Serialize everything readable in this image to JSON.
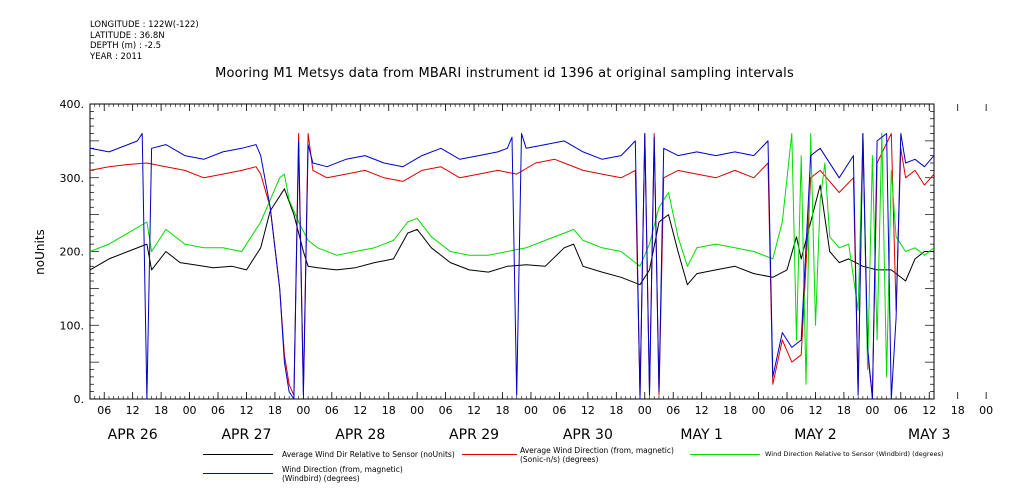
{
  "metadata": {
    "longitude": "LONGITUDE : 122W(-122)",
    "latitude": "LATITUDE : 36.8N",
    "depth": "DEPTH (m) : -2.5",
    "year": "YEAR : 2011"
  },
  "chart_data": {
    "type": "line",
    "title": "Mooring M1 Metsys data from MBARI instrument id 1396 at original sampling intervals",
    "ylabel": "noUnits",
    "ylim": [
      0,
      400
    ],
    "yticks": [
      0,
      100,
      200,
      300,
      400
    ],
    "ytick_labels": [
      "0.",
      "100.",
      "200.",
      "300.",
      "400."
    ],
    "xlim_hours": [
      0,
      178
    ],
    "x_start": "2011-04-26 03:00",
    "hour_ticks": [
      "06",
      "12",
      "18",
      "00",
      "06",
      "12",
      "18",
      "00",
      "06",
      "12",
      "18",
      "00",
      "06",
      "12",
      "18",
      "00",
      "06",
      "12",
      "18",
      "00",
      "06",
      "12",
      "18",
      "00",
      "06",
      "12",
      "18",
      "00",
      "06",
      "12",
      "18",
      "00"
    ],
    "day_labels": [
      "APR 26",
      "APR 27",
      "APR 28",
      "APR 29",
      "APR 30",
      "MAY  1",
      "MAY  2",
      "MAY  3"
    ],
    "grid": false,
    "series": [
      {
        "name": "Average Wind Dir Relative to Sensor (noUnits)",
        "color": "#000000",
        "points": [
          [
            0,
            175
          ],
          [
            4,
            190
          ],
          [
            8,
            200
          ],
          [
            12,
            210
          ],
          [
            13,
            175
          ],
          [
            16,
            200
          ],
          [
            19,
            185
          ],
          [
            22,
            182
          ],
          [
            26,
            178
          ],
          [
            30,
            180
          ],
          [
            33,
            175
          ],
          [
            36,
            205
          ],
          [
            38,
            255
          ],
          [
            40,
            275
          ],
          [
            41,
            285
          ],
          [
            43,
            250
          ],
          [
            45,
            200
          ],
          [
            46,
            180
          ],
          [
            48,
            178
          ],
          [
            52,
            175
          ],
          [
            56,
            178
          ],
          [
            60,
            185
          ],
          [
            64,
            190
          ],
          [
            67,
            225
          ],
          [
            69,
            230
          ],
          [
            72,
            205
          ],
          [
            76,
            185
          ],
          [
            80,
            175
          ],
          [
            84,
            172
          ],
          [
            88,
            180
          ],
          [
            92,
            182
          ],
          [
            96,
            180
          ],
          [
            100,
            205
          ],
          [
            102,
            210
          ],
          [
            104,
            180
          ],
          [
            108,
            172
          ],
          [
            112,
            165
          ],
          [
            116,
            155
          ],
          [
            118,
            175
          ],
          [
            120,
            240
          ],
          [
            122,
            250
          ],
          [
            124,
            200
          ],
          [
            126,
            155
          ],
          [
            128,
            170
          ],
          [
            132,
            175
          ],
          [
            136,
            180
          ],
          [
            140,
            170
          ],
          [
            144,
            165
          ],
          [
            147,
            175
          ],
          [
            149,
            220
          ],
          [
            150,
            190
          ],
          [
            152,
            240
          ],
          [
            154,
            290
          ],
          [
            156,
            200
          ],
          [
            158,
            185
          ],
          [
            160,
            190
          ],
          [
            163,
            180
          ],
          [
            166,
            175
          ],
          [
            169,
            175
          ],
          [
            172,
            160
          ],
          [
            174,
            190
          ],
          [
            176,
            200
          ],
          [
            178,
            200
          ]
        ]
      },
      {
        "name": "Average Wind Direction (from, magnetic) (Sonic-n/s) (degrees)",
        "color": "#dd0000",
        "points": [
          [
            0,
            310
          ],
          [
            4,
            315
          ],
          [
            8,
            318
          ],
          [
            12,
            320
          ],
          [
            16,
            315
          ],
          [
            20,
            310
          ],
          [
            24,
            300
          ],
          [
            28,
            305
          ],
          [
            32,
            310
          ],
          [
            35,
            315
          ],
          [
            36,
            305
          ],
          [
            38,
            260
          ],
          [
            40,
            150
          ],
          [
            41,
            60
          ],
          [
            42,
            20
          ],
          [
            43,
            5
          ],
          [
            44,
            360
          ],
          [
            45,
            10
          ],
          [
            46,
            360
          ],
          [
            47,
            310
          ],
          [
            50,
            300
          ],
          [
            54,
            305
          ],
          [
            58,
            310
          ],
          [
            62,
            300
          ],
          [
            66,
            295
          ],
          [
            70,
            310
          ],
          [
            74,
            315
          ],
          [
            78,
            300
          ],
          [
            82,
            305
          ],
          [
            86,
            310
          ],
          [
            90,
            305
          ],
          [
            94,
            320
          ],
          [
            98,
            325
          ],
          [
            100,
            320
          ],
          [
            104,
            310
          ],
          [
            108,
            305
          ],
          [
            112,
            300
          ],
          [
            115,
            310
          ],
          [
            116,
            5
          ],
          [
            117,
            360
          ],
          [
            118,
            10
          ],
          [
            119,
            360
          ],
          [
            120,
            5
          ],
          [
            121,
            300
          ],
          [
            124,
            310
          ],
          [
            128,
            305
          ],
          [
            132,
            300
          ],
          [
            136,
            310
          ],
          [
            140,
            300
          ],
          [
            143,
            320
          ],
          [
            144,
            20
          ],
          [
            146,
            80
          ],
          [
            148,
            50
          ],
          [
            150,
            60
          ],
          [
            152,
            300
          ],
          [
            154,
            310
          ],
          [
            158,
            280
          ],
          [
            161,
            300
          ],
          [
            162,
            10
          ],
          [
            163,
            360
          ],
          [
            164,
            60
          ],
          [
            165,
            5
          ],
          [
            166,
            320
          ],
          [
            169,
            360
          ],
          [
            170,
            120
          ],
          [
            171,
            340
          ],
          [
            172,
            300
          ],
          [
            174,
            310
          ],
          [
            176,
            290
          ],
          [
            178,
            305
          ]
        ]
      },
      {
        "name": "Wind Direction Relative to Sensor (Windbird) (degrees)",
        "color": "#00dd00",
        "points": [
          [
            0,
            200
          ],
          [
            4,
            210
          ],
          [
            8,
            225
          ],
          [
            12,
            240
          ],
          [
            13,
            200
          ],
          [
            16,
            230
          ],
          [
            20,
            210
          ],
          [
            24,
            205
          ],
          [
            28,
            205
          ],
          [
            32,
            200
          ],
          [
            36,
            240
          ],
          [
            38,
            270
          ],
          [
            40,
            300
          ],
          [
            41,
            305
          ],
          [
            42,
            270
          ],
          [
            44,
            240
          ],
          [
            46,
            215
          ],
          [
            48,
            205
          ],
          [
            52,
            195
          ],
          [
            56,
            200
          ],
          [
            60,
            205
          ],
          [
            64,
            215
          ],
          [
            67,
            240
          ],
          [
            69,
            245
          ],
          [
            72,
            220
          ],
          [
            76,
            200
          ],
          [
            80,
            195
          ],
          [
            84,
            195
          ],
          [
            88,
            200
          ],
          [
            92,
            205
          ],
          [
            96,
            215
          ],
          [
            100,
            225
          ],
          [
            102,
            230
          ],
          [
            104,
            215
          ],
          [
            108,
            205
          ],
          [
            112,
            200
          ],
          [
            116,
            180
          ],
          [
            118,
            210
          ],
          [
            120,
            260
          ],
          [
            122,
            280
          ],
          [
            124,
            220
          ],
          [
            126,
            180
          ],
          [
            128,
            205
          ],
          [
            132,
            210
          ],
          [
            136,
            205
          ],
          [
            140,
            200
          ],
          [
            144,
            190
          ],
          [
            146,
            240
          ],
          [
            148,
            360
          ],
          [
            149,
            80
          ],
          [
            150,
            330
          ],
          [
            151,
            20
          ],
          [
            152,
            360
          ],
          [
            153,
            100
          ],
          [
            154,
            270
          ],
          [
            155,
            320
          ],
          [
            156,
            220
          ],
          [
            158,
            205
          ],
          [
            160,
            210
          ],
          [
            162,
            120
          ],
          [
            163,
            360
          ],
          [
            164,
            40
          ],
          [
            165,
            330
          ],
          [
            166,
            80
          ],
          [
            167,
            360
          ],
          [
            168,
            30
          ],
          [
            169,
            310
          ],
          [
            170,
            220
          ],
          [
            172,
            200
          ],
          [
            174,
            205
          ],
          [
            176,
            195
          ],
          [
            178,
            205
          ]
        ]
      },
      {
        "name": "Wind Direction (from, magnetic) (Windbird) (degrees)",
        "color": "#0000cc",
        "points": [
          [
            0,
            340
          ],
          [
            4,
            335
          ],
          [
            8,
            345
          ],
          [
            10,
            350
          ],
          [
            11,
            360
          ],
          [
            12,
            0
          ],
          [
            13,
            340
          ],
          [
            16,
            345
          ],
          [
            20,
            330
          ],
          [
            24,
            325
          ],
          [
            28,
            335
          ],
          [
            32,
            340
          ],
          [
            35,
            345
          ],
          [
            36,
            330
          ],
          [
            38,
            260
          ],
          [
            40,
            150
          ],
          [
            41,
            50
          ],
          [
            42,
            10
          ],
          [
            43,
            0
          ],
          [
            44,
            350
          ],
          [
            45,
            5
          ],
          [
            46,
            345
          ],
          [
            47,
            320
          ],
          [
            50,
            315
          ],
          [
            54,
            325
          ],
          [
            58,
            330
          ],
          [
            62,
            320
          ],
          [
            66,
            315
          ],
          [
            70,
            330
          ],
          [
            74,
            340
          ],
          [
            78,
            325
          ],
          [
            82,
            330
          ],
          [
            86,
            335
          ],
          [
            88,
            340
          ],
          [
            89,
            355
          ],
          [
            90,
            5
          ],
          [
            91,
            360
          ],
          [
            92,
            340
          ],
          [
            96,
            345
          ],
          [
            100,
            350
          ],
          [
            104,
            335
          ],
          [
            108,
            325
          ],
          [
            112,
            330
          ],
          [
            115,
            350
          ],
          [
            116,
            0
          ],
          [
            117,
            360
          ],
          [
            118,
            5
          ],
          [
            119,
            355
          ],
          [
            120,
            10
          ],
          [
            121,
            340
          ],
          [
            124,
            330
          ],
          [
            128,
            335
          ],
          [
            132,
            330
          ],
          [
            136,
            335
          ],
          [
            140,
            330
          ],
          [
            143,
            350
          ],
          [
            144,
            30
          ],
          [
            146,
            90
          ],
          [
            148,
            70
          ],
          [
            150,
            80
          ],
          [
            152,
            330
          ],
          [
            154,
            340
          ],
          [
            158,
            300
          ],
          [
            161,
            330
          ],
          [
            162,
            5
          ],
          [
            163,
            360
          ],
          [
            164,
            70
          ],
          [
            165,
            0
          ],
          [
            166,
            350
          ],
          [
            168,
            360
          ],
          [
            169,
            0
          ],
          [
            170,
            110
          ],
          [
            171,
            360
          ],
          [
            172,
            320
          ],
          [
            174,
            325
          ],
          [
            176,
            315
          ],
          [
            178,
            330
          ]
        ]
      }
    ],
    "legend": {
      "placement": "bottom",
      "entries": [
        "Average Wind Dir Relative to Sensor (noUnits)",
        "Average Wind Direction (from, magnetic) (Sonic-n/s) (degrees)",
        "Wind Direction Relative to Sensor (Windbird) (degrees)",
        "Wind Direction (from, magnetic) (Windbird) (degrees)"
      ]
    }
  }
}
